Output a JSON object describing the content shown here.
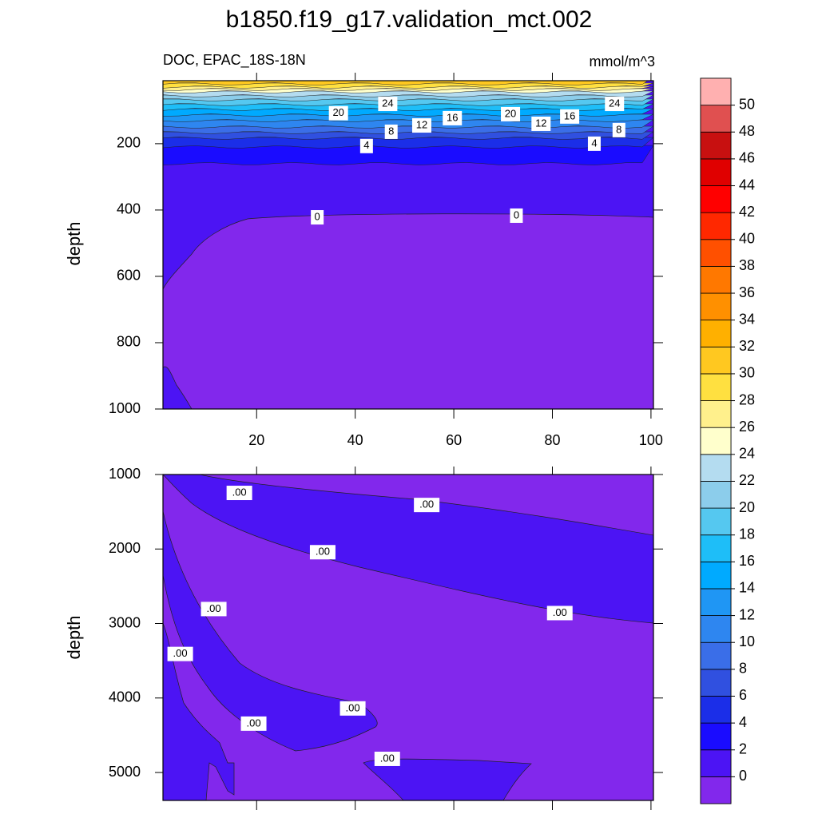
{
  "title": "b1850.f19_g17.validation_mct.002",
  "chart_data": [
    {
      "type": "contour",
      "subtitle_left": "DOC, EPAC_18S-18N",
      "subtitle_right": "mmol/m^3",
      "ylabel": "depth",
      "xlim": [
        1,
        100.5
      ],
      "xticks": [
        20,
        40,
        60,
        80,
        100
      ],
      "ylim": [
        1000,
        10
      ],
      "yticks": [
        200,
        400,
        600,
        800,
        1000
      ],
      "contour_labels": [
        {
          "x": 36.6,
          "y": 108,
          "value": 20
        },
        {
          "x": 46.6,
          "y": 80,
          "value": 24
        },
        {
          "x": 47.3,
          "y": 164,
          "value": 8
        },
        {
          "x": 53.5,
          "y": 145,
          "value": 12
        },
        {
          "x": 59.7,
          "y": 123,
          "value": 16
        },
        {
          "x": 42.3,
          "y": 207,
          "value": 4
        },
        {
          "x": 32.3,
          "y": 422,
          "value": 0
        },
        {
          "x": 71.5,
          "y": 111,
          "value": 20
        },
        {
          "x": 77.7,
          "y": 140,
          "value": 12
        },
        {
          "x": 83.5,
          "y": 118,
          "value": 16
        },
        {
          "x": 92.6,
          "y": 80,
          "value": 24
        },
        {
          "x": 93.5,
          "y": 159,
          "value": 8
        },
        {
          "x": 88.5,
          "y": 200,
          "value": 4
        },
        {
          "x": 72.7,
          "y": 417,
          "value": 0
        }
      ]
    },
    {
      "type": "contour",
      "ylabel": "depth",
      "xlim": [
        1,
        100.5
      ],
      "xticks": [
        20,
        40,
        60,
        80,
        100
      ],
      "ylim": [
        5375,
        1000
      ],
      "yticks": [
        1000,
        2000,
        3000,
        4000,
        5000
      ],
      "contour_labels": [
        {
          "x": 16.5,
          "y": 1247,
          "value": 0,
          "label": ".00"
        },
        {
          "x": 54.5,
          "y": 1409,
          "value": 0,
          "label": ".00"
        },
        {
          "x": 33.4,
          "y": 2043,
          "value": 0,
          "label": ".00"
        },
        {
          "x": 11.3,
          "y": 2806,
          "value": 0,
          "label": ".00"
        },
        {
          "x": 81.5,
          "y": 2860,
          "value": 0,
          "label": ".00"
        },
        {
          "x": 4.5,
          "y": 3409,
          "value": 0,
          "label": ".00"
        },
        {
          "x": 39.5,
          "y": 4140,
          "value": 0,
          "label": ".00"
        },
        {
          "x": 19.4,
          "y": 4344,
          "value": 0,
          "label": ".00"
        },
        {
          "x": 46.5,
          "y": 4817,
          "value": 0,
          "label": ".00"
        }
      ]
    }
  ],
  "colorbar": {
    "levels": [
      0,
      2,
      4,
      6,
      8,
      10,
      12,
      14,
      16,
      18,
      20,
      22,
      24,
      26,
      28,
      30,
      32,
      34,
      36,
      38,
      40,
      42,
      44,
      46,
      48,
      50
    ],
    "colors": [
      "#8228ec",
      "#4c14f4",
      "#1a0cff",
      "#1b2ee8",
      "#3050e0",
      "#3a6ee8",
      "#2e86f0",
      "#1f96f4",
      "#00aaff",
      "#1ebef8",
      "#55c8f0",
      "#8ccdeb",
      "#b4dcf0",
      "#ffffcc",
      "#fff08c",
      "#ffe040",
      "#ffc820",
      "#ffb000",
      "#ff9000",
      "#ff7800",
      "#ff5000",
      "#ff2800",
      "#ff0000",
      "#e00000",
      "#c81010",
      "#e05050",
      "#ffb0b0"
    ]
  }
}
